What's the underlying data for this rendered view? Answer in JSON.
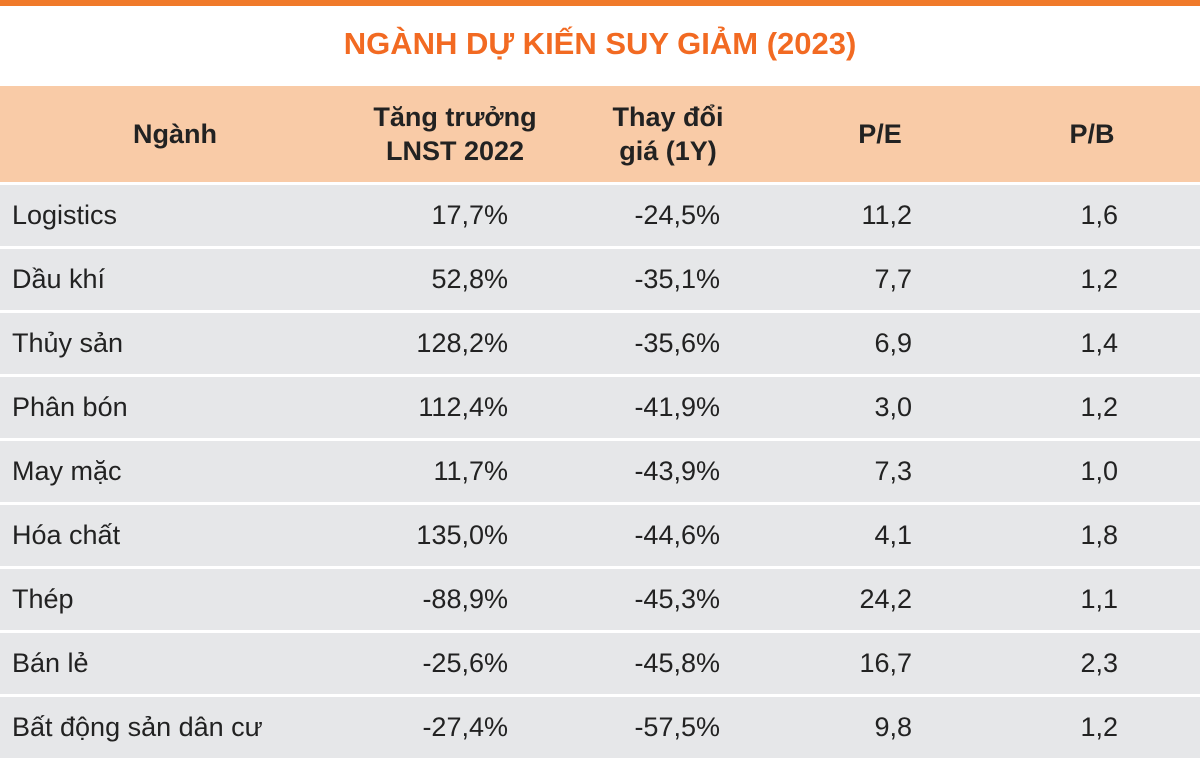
{
  "title": "NGÀNH DỰ KIẾN SUY GIẢM (2023)",
  "table": {
    "header": [
      [
        "Ngành"
      ],
      [
        "Tăng trưởng",
        "LNST 2022"
      ],
      [
        "Thay đổi",
        "giá (1Y)"
      ],
      [
        "P/E"
      ],
      [
        "P/B"
      ]
    ],
    "rows": [
      [
        "Logistics",
        "17,7%",
        "-24,5%",
        "11,2",
        "1,6"
      ],
      [
        "Dầu khí",
        "52,8%",
        "-35,1%",
        "7,7",
        "1,2"
      ],
      [
        "Thủy sản",
        "128,2%",
        "-35,6%",
        "6,9",
        "1,4"
      ],
      [
        "Phân bón",
        "112,4%",
        "-41,9%",
        "3,0",
        "1,2"
      ],
      [
        "May mặc",
        "11,7%",
        "-43,9%",
        "7,3",
        "1,0"
      ],
      [
        "Hóa chất",
        "135,0%",
        "-44,6%",
        "4,1",
        "1,8"
      ],
      [
        "Thép",
        "-88,9%",
        "-45,3%",
        "24,2",
        "1,1"
      ],
      [
        "Bán lẻ",
        "-25,6%",
        "-45,8%",
        "16,7",
        "2,3"
      ],
      [
        "Bất động sản dân cư",
        "-27,4%",
        "-57,5%",
        "9,8",
        "1,2"
      ]
    ]
  }
}
